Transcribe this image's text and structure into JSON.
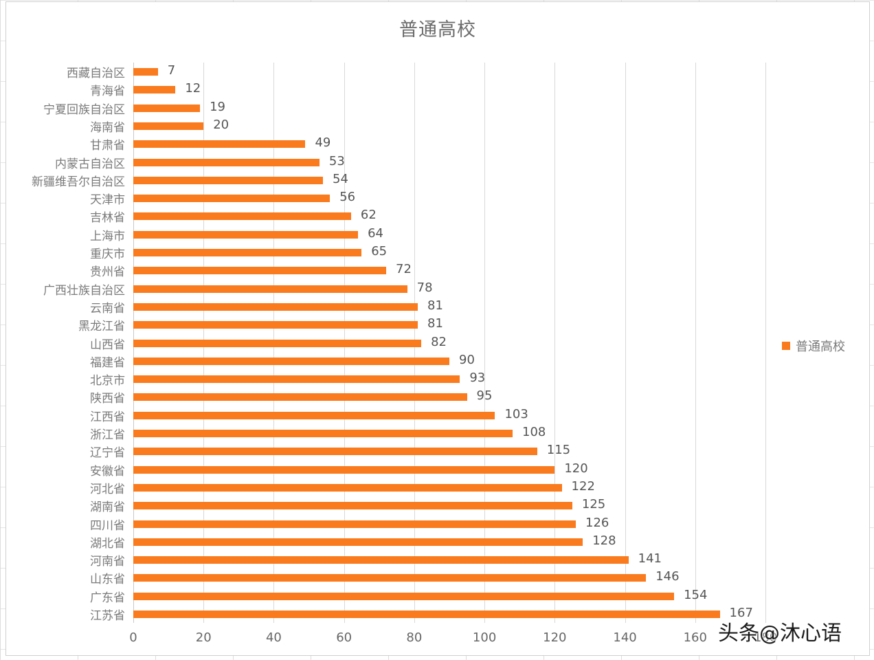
{
  "chart_data": {
    "type": "bar",
    "orientation": "horizontal",
    "title": "普通高校",
    "xlabel": "",
    "ylabel": "",
    "xlim": [
      0,
      180
    ],
    "x_ticks": [
      0,
      20,
      40,
      60,
      80,
      100,
      120,
      140,
      160,
      180
    ],
    "grid": true,
    "legend_position": "right",
    "categories": [
      "西藏自治区",
      "青海省",
      "宁夏回族自治区",
      "海南省",
      "甘肃省",
      "内蒙古自治区",
      "新疆维吾尔自治区",
      "天津市",
      "吉林省",
      "上海市",
      "重庆市",
      "贵州省",
      "广西壮族自治区",
      "云南省",
      "黑龙江省",
      "山西省",
      "福建省",
      "北京市",
      "陕西省",
      "江西省",
      "浙江省",
      "辽宁省",
      "安徽省",
      "河北省",
      "湖南省",
      "四川省",
      "湖北省",
      "河南省",
      "山东省",
      "广东省",
      "江苏省"
    ],
    "series": [
      {
        "name": "普通高校",
        "color": "#fa7a1e",
        "values": [
          7,
          12,
          19,
          20,
          49,
          53,
          54,
          56,
          62,
          64,
          65,
          72,
          78,
          81,
          81,
          82,
          90,
          93,
          95,
          103,
          108,
          115,
          120,
          122,
          125,
          126,
          128,
          141,
          146,
          154,
          167
        ]
      }
    ]
  },
  "legend": {
    "label": "普通高校"
  },
  "watermark": "头条@沐心语"
}
